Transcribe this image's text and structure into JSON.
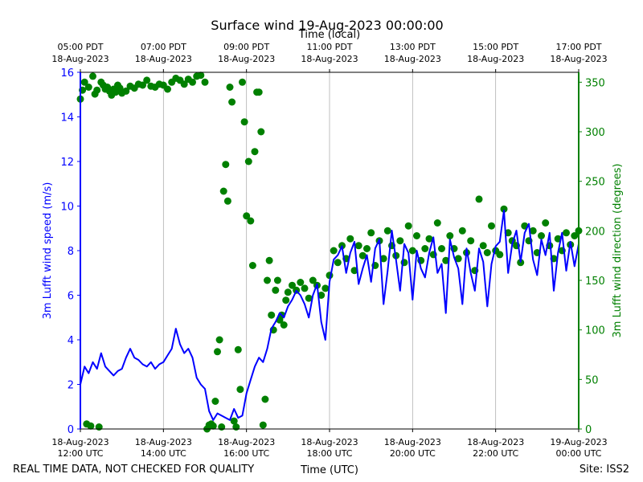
{
  "chart_data": {
    "type": "line+scatter",
    "title": "Surface wind 19-Aug-2023 00:00:00",
    "top_axis_label": "Time (local)",
    "xlabel": "Time (UTC)",
    "ylabel_left": "3m Lufft wind speed (m/s)",
    "ylabel_right": "3m Lufft wind direction (degrees)",
    "footer_left": "REAL TIME DATA, NOT CHECKED FOR QUALITY",
    "footer_right": "Site: ISS2",
    "xlim_hours_utc": [
      12,
      24
    ],
    "ylim_left": [
      0,
      16
    ],
    "ylim_right": [
      0,
      360
    ],
    "left_ticks": [
      0,
      2,
      4,
      6,
      8,
      10,
      12,
      14,
      16
    ],
    "right_ticks": [
      0,
      50,
      100,
      150,
      200,
      250,
      300,
      350
    ],
    "bottom_ticks": [
      {
        "hour": 12,
        "date": "18-Aug-2023",
        "time": "12:00 UTC"
      },
      {
        "hour": 14,
        "date": "18-Aug-2023",
        "time": "14:00 UTC"
      },
      {
        "hour": 16,
        "date": "18-Aug-2023",
        "time": "16:00 UTC"
      },
      {
        "hour": 18,
        "date": "18-Aug-2023",
        "time": "18:00 UTC"
      },
      {
        "hour": 20,
        "date": "18-Aug-2023",
        "time": "20:00 UTC"
      },
      {
        "hour": 22,
        "date": "18-Aug-2023",
        "time": "22:00 UTC"
      },
      {
        "hour": 24,
        "date": "19-Aug-2023",
        "time": "00:00 UTC"
      }
    ],
    "top_ticks": [
      {
        "hour": 12,
        "time": "05:00 PDT",
        "date": "18-Aug-2023"
      },
      {
        "hour": 14,
        "time": "07:00 PDT",
        "date": "18-Aug-2023"
      },
      {
        "hour": 16,
        "time": "09:00 PDT",
        "date": "18-Aug-2023"
      },
      {
        "hour": 18,
        "time": "11:00 PDT",
        "date": "18-Aug-2023"
      },
      {
        "hour": 20,
        "time": "13:00 PDT",
        "date": "18-Aug-2023"
      },
      {
        "hour": 22,
        "time": "15:00 PDT",
        "date": "18-Aug-2023"
      },
      {
        "hour": 24,
        "time": "17:00 PDT",
        "date": "18-Aug-2023"
      }
    ],
    "colors": {
      "speed": "#0000ff",
      "direction": "#008000",
      "grid": "#b0b0b0"
    },
    "series": [
      {
        "name": "wind speed (m/s)",
        "axis": "left",
        "x_hours": [
          12.0,
          12.1,
          12.2,
          12.3,
          12.4,
          12.5,
          12.6,
          12.7,
          12.8,
          12.9,
          13.0,
          13.1,
          13.2,
          13.3,
          13.4,
          13.5,
          13.6,
          13.7,
          13.8,
          13.9,
          14.0,
          14.1,
          14.2,
          14.3,
          14.4,
          14.5,
          14.6,
          14.7,
          14.8,
          14.9,
          15.0,
          15.1,
          15.2,
          15.3,
          15.4,
          15.5,
          15.6,
          15.7,
          15.8,
          15.9,
          16.0,
          16.1,
          16.2,
          16.3,
          16.4,
          16.5,
          16.6,
          16.7,
          16.8,
          16.9,
          17.0,
          17.1,
          17.2,
          17.3,
          17.4,
          17.5,
          17.6,
          17.7,
          17.8,
          17.9,
          18.0,
          18.1,
          18.2,
          18.3,
          18.4,
          18.5,
          18.6,
          18.7,
          18.8,
          18.9,
          19.0,
          19.1,
          19.2,
          19.3,
          19.4,
          19.5,
          19.6,
          19.7,
          19.8,
          19.9,
          20.0,
          20.1,
          20.2,
          20.3,
          20.4,
          20.5,
          20.6,
          20.7,
          20.8,
          20.9,
          21.0,
          21.1,
          21.2,
          21.3,
          21.4,
          21.5,
          21.6,
          21.7,
          21.8,
          21.9,
          22.0,
          22.1,
          22.2,
          22.3,
          22.4,
          22.5,
          22.6,
          22.7,
          22.8,
          22.9,
          23.0,
          23.1,
          23.2,
          23.3,
          23.4,
          23.5,
          23.6,
          23.7,
          23.8,
          23.9,
          24.0
        ],
        "values": [
          2.0,
          2.8,
          2.5,
          3.0,
          2.7,
          3.4,
          2.8,
          2.6,
          2.4,
          2.6,
          2.7,
          3.2,
          3.6,
          3.2,
          3.1,
          2.9,
          2.8,
          3.0,
          2.7,
          2.9,
          3.0,
          3.3,
          3.6,
          4.5,
          3.8,
          3.4,
          3.6,
          3.2,
          2.3,
          2.0,
          1.8,
          0.8,
          0.4,
          0.7,
          0.6,
          0.5,
          0.4,
          0.9,
          0.5,
          0.6,
          1.6,
          2.2,
          2.8,
          3.2,
          3.0,
          3.6,
          4.5,
          4.8,
          5.2,
          5.0,
          5.5,
          5.8,
          6.2,
          6.0,
          5.6,
          5.0,
          6.0,
          6.5,
          4.8,
          4.0,
          6.6,
          7.6,
          7.8,
          8.2,
          7.0,
          7.9,
          8.4,
          6.5,
          7.2,
          7.8,
          6.6,
          8.1,
          8.5,
          5.6,
          7.1,
          8.9,
          7.6,
          6.2,
          8.3,
          7.9,
          5.8,
          8.0,
          7.2,
          6.8,
          7.9,
          8.6,
          7.0,
          7.4,
          5.2,
          8.5,
          7.7,
          7.2,
          5.6,
          8.1,
          7.0,
          6.2,
          8.1,
          7.5,
          5.5,
          7.4,
          8.2,
          8.4,
          9.8,
          7.0,
          8.3,
          8.9,
          7.5,
          8.8,
          9.2,
          7.6,
          6.9,
          8.5,
          7.8,
          8.8,
          6.2,
          7.9,
          8.8,
          7.1,
          8.4,
          7.3,
          8.3
        ]
      },
      {
        "name": "wind direction (degrees)",
        "axis": "right",
        "x_hours": [
          12.0,
          12.05,
          12.1,
          12.15,
          12.2,
          12.25,
          12.3,
          12.35,
          12.4,
          12.45,
          12.5,
          12.55,
          12.6,
          12.65,
          12.7,
          12.75,
          12.8,
          12.85,
          12.9,
          12.95,
          13.0,
          13.1,
          13.2,
          13.3,
          13.4,
          13.5,
          13.6,
          13.7,
          13.8,
          13.9,
          14.0,
          14.1,
          14.2,
          14.3,
          14.4,
          14.5,
          14.6,
          14.7,
          14.8,
          14.9,
          15.0,
          15.05,
          15.1,
          15.15,
          15.2,
          15.25,
          15.3,
          15.35,
          15.4,
          15.45,
          15.5,
          15.55,
          15.6,
          15.65,
          15.7,
          15.75,
          15.8,
          15.85,
          15.9,
          15.95,
          16.0,
          16.05,
          16.1,
          16.15,
          16.2,
          16.25,
          16.3,
          16.35,
          16.4,
          16.45,
          16.5,
          16.55,
          16.6,
          16.65,
          16.7,
          16.75,
          16.8,
          16.85,
          16.9,
          16.95,
          17.0,
          17.1,
          17.2,
          17.3,
          17.4,
          17.5,
          17.6,
          17.7,
          17.8,
          17.9,
          18.0,
          18.1,
          18.2,
          18.3,
          18.4,
          18.5,
          18.6,
          18.7,
          18.8,
          18.9,
          19.0,
          19.1,
          19.2,
          19.3,
          19.4,
          19.5,
          19.6,
          19.7,
          19.8,
          19.9,
          20.0,
          20.1,
          20.2,
          20.3,
          20.4,
          20.5,
          20.6,
          20.7,
          20.8,
          20.9,
          21.0,
          21.1,
          21.2,
          21.3,
          21.4,
          21.5,
          21.6,
          21.7,
          21.8,
          21.9,
          22.0,
          22.1,
          22.2,
          22.3,
          22.4,
          22.5,
          22.6,
          22.7,
          22.8,
          22.9,
          23.0,
          23.1,
          23.2,
          23.3,
          23.4,
          23.5,
          23.6,
          23.7,
          23.8,
          23.9,
          24.0
        ],
        "values": [
          333,
          342,
          350,
          5,
          345,
          3,
          356,
          338,
          342,
          2,
          350,
          347,
          343,
          345,
          341,
          337,
          343,
          340,
          347,
          344,
          339,
          341,
          346,
          344,
          348,
          347,
          352,
          346,
          345,
          348,
          347,
          343,
          350,
          354,
          352,
          348,
          353,
          350,
          356,
          357,
          350,
          0,
          4,
          5,
          3,
          28,
          78,
          90,
          2,
          240,
          267,
          230,
          345,
          330,
          8,
          2,
          80,
          40,
          350,
          310,
          215,
          270,
          210,
          165,
          280,
          340,
          340,
          300,
          4,
          30,
          150,
          170,
          115,
          100,
          140,
          150,
          110,
          115,
          105,
          130,
          138,
          145,
          140,
          148,
          142,
          132,
          150,
          145,
          135,
          142,
          155,
          180,
          168,
          185,
          172,
          192,
          160,
          185,
          175,
          182,
          198,
          165,
          190,
          172,
          200,
          185,
          175,
          190,
          168,
          205,
          180,
          195,
          170,
          182,
          192,
          176,
          208,
          182,
          170,
          195,
          182,
          172,
          200,
          178,
          190,
          160,
          232,
          185,
          178,
          205,
          180,
          176,
          222,
          198,
          190,
          185,
          168,
          205,
          190,
          200,
          178,
          195,
          208,
          185,
          172,
          192,
          180,
          198,
          186,
          195,
          200
        ]
      }
    ]
  }
}
